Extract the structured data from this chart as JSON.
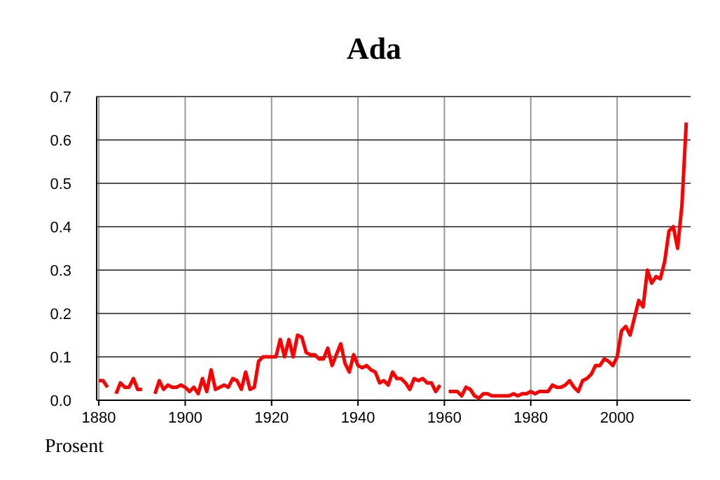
{
  "chart_data": {
    "type": "line",
    "title": "Ada",
    "ylabel": "Prosent",
    "x": [
      1880,
      1881,
      1882,
      1883,
      1884,
      1885,
      1886,
      1887,
      1888,
      1889,
      1890,
      1891,
      1892,
      1893,
      1894,
      1895,
      1896,
      1897,
      1898,
      1899,
      1900,
      1901,
      1902,
      1903,
      1904,
      1905,
      1906,
      1907,
      1908,
      1909,
      1910,
      1911,
      1912,
      1913,
      1914,
      1915,
      1916,
      1917,
      1918,
      1919,
      1920,
      1921,
      1922,
      1923,
      1924,
      1925,
      1926,
      1927,
      1928,
      1929,
      1930,
      1931,
      1932,
      1933,
      1934,
      1935,
      1936,
      1937,
      1938,
      1939,
      1940,
      1941,
      1942,
      1943,
      1944,
      1945,
      1946,
      1947,
      1948,
      1949,
      1950,
      1951,
      1952,
      1953,
      1954,
      1955,
      1956,
      1957,
      1958,
      1959,
      1960,
      1961,
      1962,
      1963,
      1964,
      1965,
      1966,
      1967,
      1968,
      1969,
      1970,
      1971,
      1972,
      1973,
      1974,
      1975,
      1976,
      1977,
      1978,
      1979,
      1980,
      1981,
      1982,
      1983,
      1984,
      1985,
      1986,
      1987,
      1988,
      1989,
      1990,
      1991,
      1992,
      1993,
      1994,
      1995,
      1996,
      1997,
      1998,
      1999,
      2000,
      2001,
      2002,
      2003,
      2004,
      2005,
      2006,
      2007,
      2008,
      2009,
      2010,
      2011,
      2012,
      2013,
      2014,
      2015,
      2016
    ],
    "series": [
      {
        "color": "#ff0000",
        "values": [
          0.045,
          0.045,
          0.03,
          null,
          0.015,
          0.04,
          0.03,
          0.03,
          0.05,
          0.025,
          0.025,
          null,
          null,
          0.015,
          0.045,
          0.025,
          0.035,
          0.03,
          0.03,
          0.035,
          0.03,
          0.02,
          0.03,
          0.015,
          0.05,
          0.02,
          0.07,
          0.025,
          0.03,
          0.035,
          0.03,
          0.05,
          0.045,
          0.025,
          0.065,
          0.025,
          0.03,
          0.09,
          0.1,
          0.1,
          0.1,
          0.1,
          0.14,
          0.1,
          0.14,
          0.1,
          0.15,
          0.145,
          0.11,
          0.105,
          0.105,
          0.095,
          0.095,
          0.12,
          0.08,
          0.105,
          0.13,
          0.085,
          0.065,
          0.105,
          0.08,
          0.075,
          0.08,
          0.07,
          0.065,
          0.04,
          0.045,
          0.035,
          0.065,
          0.05,
          0.05,
          0.04,
          0.025,
          0.05,
          0.045,
          0.05,
          0.04,
          0.04,
          0.02,
          0.035,
          null,
          0.02,
          0.02,
          0.02,
          0.01,
          0.03,
          0.025,
          0.01,
          0.005,
          0.015,
          0.015,
          0.01,
          0.01,
          0.01,
          0.01,
          0.01,
          0.015,
          0.01,
          0.015,
          0.015,
          0.02,
          0.015,
          0.02,
          0.02,
          0.02,
          0.035,
          0.03,
          0.03,
          0.035,
          0.045,
          0.03,
          0.02,
          0.045,
          0.05,
          0.06,
          0.08,
          0.08,
          0.095,
          0.09,
          0.08,
          0.1,
          0.16,
          0.17,
          0.15,
          0.19,
          0.23,
          0.215,
          0.3,
          0.27,
          0.285,
          0.28,
          0.32,
          0.39,
          0.4,
          0.35,
          0.45,
          0.64
        ]
      }
    ],
    "xlim": [
      1879.5,
      2017
    ],
    "xticks": [
      1880,
      1900,
      1920,
      1940,
      1960,
      1980,
      2000
    ],
    "ylim": [
      0,
      0.7
    ],
    "yticks": [
      {
        "value": 0,
        "label": "0.0"
      },
      {
        "value": 0.1,
        "label": "0.1"
      },
      {
        "value": 0.2,
        "label": "0.2"
      },
      {
        "value": 0.3,
        "label": "0.3"
      },
      {
        "value": 0.4,
        "label": "0.4"
      },
      {
        "value": 0.5,
        "label": "0.5"
      },
      {
        "value": 0.6,
        "label": "0.6"
      },
      {
        "value": 0.7,
        "label": "0.7"
      }
    ],
    "grid": true,
    "line_style": "solid"
  }
}
